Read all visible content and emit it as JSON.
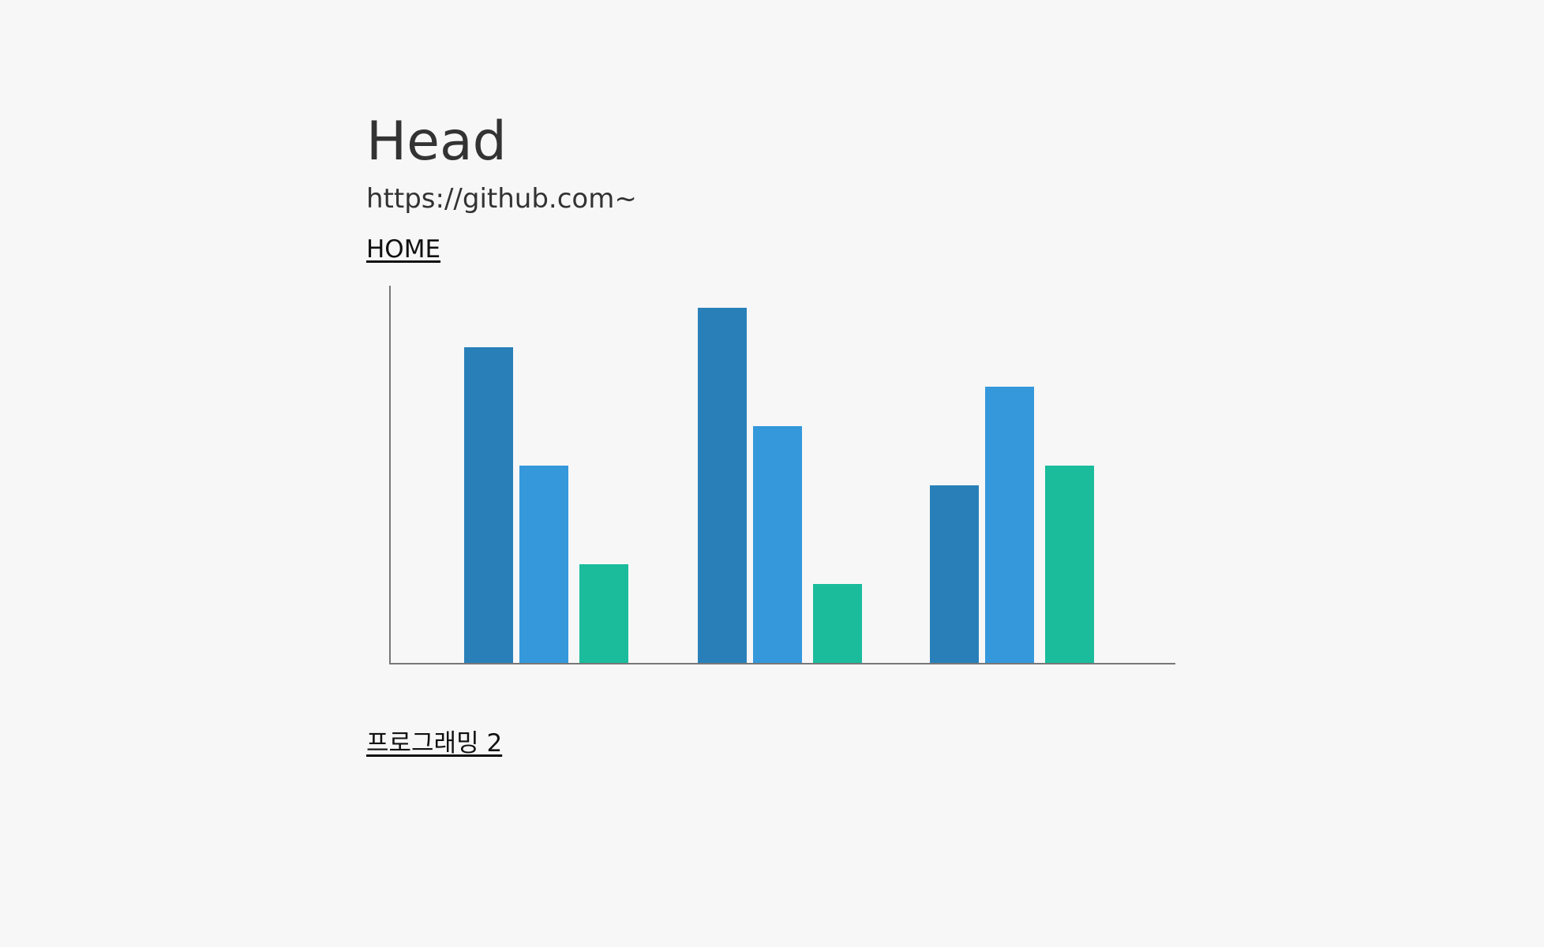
{
  "header": {
    "title": "Head",
    "url": "https://github.com~"
  },
  "nav": {
    "home_label": "HOME",
    "post_link_label": "프로그래밍 2"
  },
  "colors": {
    "background": "#f7f7f7",
    "text": "#333333",
    "axis": "#777777",
    "series": [
      "#2980b9",
      "#3498db",
      "#1abc9c"
    ]
  },
  "chart_data": {
    "type": "bar",
    "title": "",
    "xlabel": "",
    "ylabel": "",
    "categories": [
      "",
      "",
      ""
    ],
    "series": [
      {
        "values": [
          80,
          90,
          45
        ]
      },
      {
        "values": [
          50,
          60,
          70
        ]
      },
      {
        "values": [
          25,
          20,
          50
        ]
      }
    ],
    "ylim": [
      0,
      120
    ],
    "grid": false,
    "legend": "none"
  }
}
